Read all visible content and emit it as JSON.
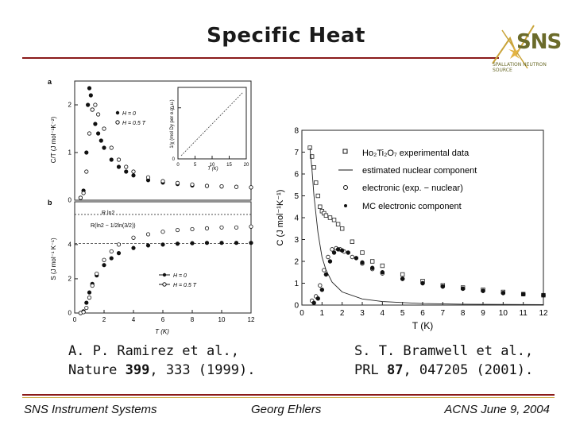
{
  "slide": {
    "title": "Specific Heat",
    "logo": {
      "text": "SNS",
      "subtitle": "SPALLATION NEUTRON SOURCE"
    },
    "citation_left": {
      "line1": "A. P. Ramirez et al.,",
      "journal": "Nature ",
      "volume": "399",
      "rest": ", 333 (1999)."
    },
    "citation_right": {
      "line1": "S. T. Bramwell et al.,",
      "journal": "PRL ",
      "volume": "87",
      "rest": ", 047205 (2001)."
    },
    "footer": {
      "left": "SNS Instrument Systems",
      "middle": "Georg Ehlers",
      "right": "ACNS  June 9, 2004"
    }
  },
  "chart_data": [
    {
      "type": "scatter",
      "panel": "a",
      "ylabel": "C/T (J mol⁻¹K⁻²)",
      "ylim": [
        0,
        2.5
      ],
      "yticks": [
        "0",
        "1",
        "2"
      ],
      "xlim": [
        0,
        12
      ],
      "series": [
        {
          "name": "H = 0",
          "marker": "filled-circle",
          "x": [
            0.4,
            0.6,
            0.8,
            0.9,
            1.0,
            1.1,
            1.2,
            1.4,
            1.6,
            1.8,
            2.0,
            2.5,
            3,
            3.5,
            4,
            5,
            6,
            7,
            8,
            9,
            10,
            11,
            12
          ],
          "y": [
            0.05,
            0.2,
            1.0,
            2.0,
            2.35,
            2.2,
            1.9,
            1.6,
            1.4,
            1.25,
            1.1,
            0.85,
            0.7,
            0.6,
            0.52,
            0.42,
            0.37,
            0.34,
            0.31,
            0.3,
            0.29,
            0.28,
            0.27
          ]
        },
        {
          "name": "H = 0.5 T",
          "marker": "open-circle",
          "x": [
            0.4,
            0.6,
            0.8,
            1.0,
            1.2,
            1.4,
            1.6,
            2.0,
            2.5,
            3,
            3.5,
            4,
            5,
            6,
            7,
            8,
            9,
            10,
            11,
            12
          ],
          "y": [
            0.05,
            0.15,
            0.6,
            1.4,
            1.9,
            2.0,
            1.8,
            1.5,
            1.1,
            0.85,
            0.7,
            0.6,
            0.48,
            0.4,
            0.36,
            0.33,
            0.3,
            0.29,
            0.28,
            0.27
          ]
        }
      ],
      "inset": {
        "ylabel": "1/χ (mol Dy per e.m.u.)",
        "xlabel": "T (K)",
        "xticks": [
          "0",
          "5",
          "10",
          "15",
          "20"
        ],
        "yticks": [
          "0",
          "1"
        ]
      }
    },
    {
      "type": "scatter",
      "panel": "b",
      "ylabel": "S (J mol⁻¹ K⁻¹)",
      "xlabel": "T (K)",
      "xlim": [
        0,
        12
      ],
      "ylim": [
        0,
        6.5
      ],
      "xticks": [
        "0",
        "2",
        "4",
        "6",
        "8",
        "10",
        "12"
      ],
      "yticks": [
        "0",
        "2",
        "4"
      ],
      "annotations": [
        "R ln2",
        "R(ln2 − 1/2ln(3/2))"
      ],
      "series": [
        {
          "name": "H = 0",
          "marker": "filled-circle",
          "x": [
            0.4,
            0.6,
            0.8,
            1.0,
            1.2,
            1.5,
            2,
            2.5,
            3,
            4,
            5,
            6,
            7,
            8,
            9,
            10,
            11,
            12
          ],
          "y": [
            0,
            0.1,
            0.6,
            1.2,
            1.7,
            2.2,
            2.8,
            3.2,
            3.5,
            3.8,
            3.95,
            4.0,
            4.05,
            4.08,
            4.1,
            4.1,
            4.1,
            4.1
          ]
        },
        {
          "name": "H = 0.5 T",
          "marker": "open-circle",
          "x": [
            0.4,
            0.6,
            0.8,
            1.0,
            1.2,
            1.5,
            2,
            2.5,
            3,
            4,
            5,
            6,
            7,
            8,
            9,
            10,
            11,
            12
          ],
          "y": [
            0,
            0.05,
            0.3,
            0.9,
            1.6,
            2.3,
            3.1,
            3.6,
            4.0,
            4.4,
            4.6,
            4.75,
            4.85,
            4.9,
            4.95,
            5.0,
            5.0,
            5.05
          ]
        }
      ]
    },
    {
      "type": "scatter",
      "ylabel": "C (J mol⁻¹K⁻¹)",
      "xlabel": "T (K)",
      "xlim": [
        0,
        12
      ],
      "ylim": [
        0,
        8
      ],
      "xticks": [
        "0",
        "1",
        "2",
        "3",
        "4",
        "5",
        "6",
        "7",
        "8",
        "9",
        "10",
        "11",
        "12"
      ],
      "yticks": [
        "0",
        "1",
        "2",
        "3",
        "4",
        "5",
        "6",
        "7",
        "8"
      ],
      "legend_position": "top-right",
      "legend": [
        "Ho₂Ti₂O₇   experimental data",
        "estimated nuclear component",
        "electronic (exp. − nuclear)",
        "MC electronic component"
      ],
      "series": [
        {
          "name": "Ho₂Ti₂O₇   experimental data",
          "marker": "open-square",
          "x": [
            0.4,
            0.5,
            0.6,
            0.7,
            0.8,
            0.9,
            1.0,
            1.1,
            1.2,
            1.4,
            1.6,
            1.8,
            2.0,
            2.5,
            3,
            3.5,
            4,
            5,
            6,
            7,
            8,
            9,
            10,
            11,
            12
          ],
          "y": [
            7.2,
            6.8,
            6.3,
            5.6,
            5.0,
            4.5,
            4.3,
            4.2,
            4.1,
            4.0,
            3.9,
            3.7,
            3.5,
            2.9,
            2.4,
            2.0,
            1.8,
            1.4,
            1.1,
            0.9,
            0.8,
            0.7,
            0.6,
            0.5,
            0.45
          ]
        },
        {
          "name": "estimated nuclear component",
          "marker": "line",
          "x": [
            0.4,
            0.5,
            0.6,
            0.8,
            1.0,
            1.2,
            1.5,
            2,
            3,
            4,
            6,
            8,
            10,
            12
          ],
          "y": [
            7.2,
            6.2,
            5.0,
            3.3,
            2.2,
            1.6,
            1.05,
            0.6,
            0.28,
            0.16,
            0.07,
            0.04,
            0.03,
            0.02
          ]
        },
        {
          "name": "electronic (exp. − nuclear)",
          "marker": "open-circle",
          "x": [
            0.5,
            0.7,
            0.9,
            1.1,
            1.3,
            1.5,
            1.7,
            1.9,
            2.1,
            2.5,
            3,
            3.5,
            4,
            5,
            6,
            7,
            8,
            9,
            10,
            11,
            12
          ],
          "y": [
            0.2,
            0.4,
            0.9,
            1.6,
            2.2,
            2.55,
            2.6,
            2.55,
            2.45,
            2.2,
            1.9,
            1.65,
            1.45,
            1.2,
            1.0,
            0.85,
            0.75,
            0.65,
            0.55,
            0.5,
            0.45
          ]
        },
        {
          "name": "MC electronic component",
          "marker": "filled-circle",
          "x": [
            0.6,
            0.8,
            1.0,
            1.2,
            1.4,
            1.6,
            1.8,
            2.0,
            2.3,
            2.7,
            3,
            3.5,
            4,
            5,
            6,
            7,
            8,
            9,
            10,
            11,
            12
          ],
          "y": [
            0.1,
            0.3,
            0.7,
            1.4,
            2.0,
            2.4,
            2.55,
            2.5,
            2.4,
            2.15,
            1.95,
            1.7,
            1.5,
            1.2,
            1.0,
            0.85,
            0.75,
            0.65,
            0.55,
            0.5,
            0.45
          ]
        }
      ]
    }
  ]
}
